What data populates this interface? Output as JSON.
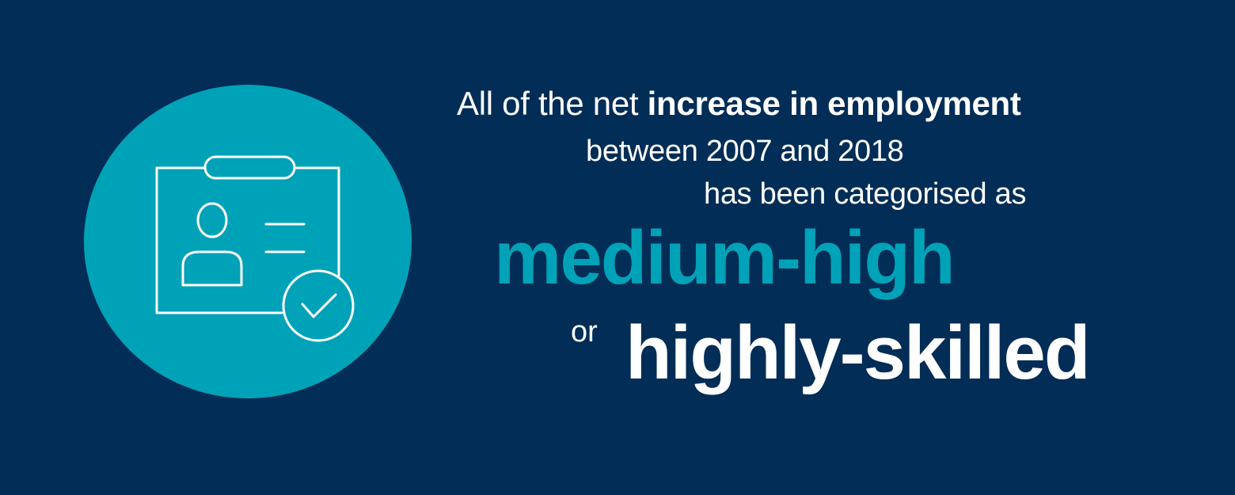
{
  "headline": {
    "intro": "All of the net ",
    "intro_bold": "increase in employment",
    "period": "between 2007 and 2018",
    "categorised": "has been categorised as",
    "category_primary": "medium-high",
    "connector": "or",
    "category_secondary": "highly-skilled"
  },
  "icon": {
    "name": "id-badge-check-icon"
  },
  "colors": {
    "background": "#022d56",
    "accent": "#00a2b8",
    "text": "#ffffff"
  }
}
